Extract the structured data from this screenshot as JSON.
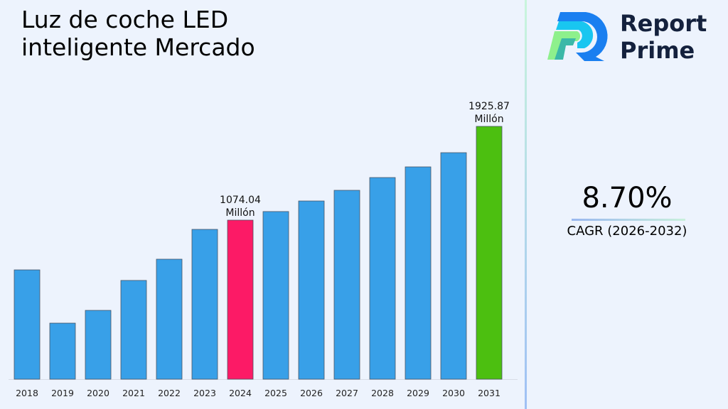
{
  "title": "Luz de coche LED inteligente Mercado",
  "brand": {
    "name_line1": "Report",
    "name_line2": "Prime"
  },
  "cagr": {
    "value": "8.70%",
    "label": "CAGR (2026-2032)"
  },
  "colors": {
    "bar": "#38a0e8",
    "highlight_2024": "#fc1a66",
    "highlight_2031": "#4cbf10"
  },
  "chart_data": {
    "type": "bar",
    "title": "Luz de coche LED inteligente Mercado",
    "categories": [
      "2018",
      "2019",
      "2020",
      "2021",
      "2022",
      "2023",
      "2024",
      "2025",
      "2026",
      "2027",
      "2028",
      "2029",
      "2030",
      "2031"
    ],
    "values": [
      622,
      138,
      254,
      526,
      719,
      990,
      1074.04,
      1152,
      1248,
      1345,
      1461,
      1558,
      1687,
      1925.87
    ],
    "data_labels": [
      {
        "category": "2024",
        "value": "1074.04",
        "unit": "Millón"
      },
      {
        "category": "2031",
        "value": "1925.87",
        "unit": "Millón"
      }
    ],
    "xlabel": "",
    "ylabel": "",
    "grid": false,
    "legend": "none"
  }
}
